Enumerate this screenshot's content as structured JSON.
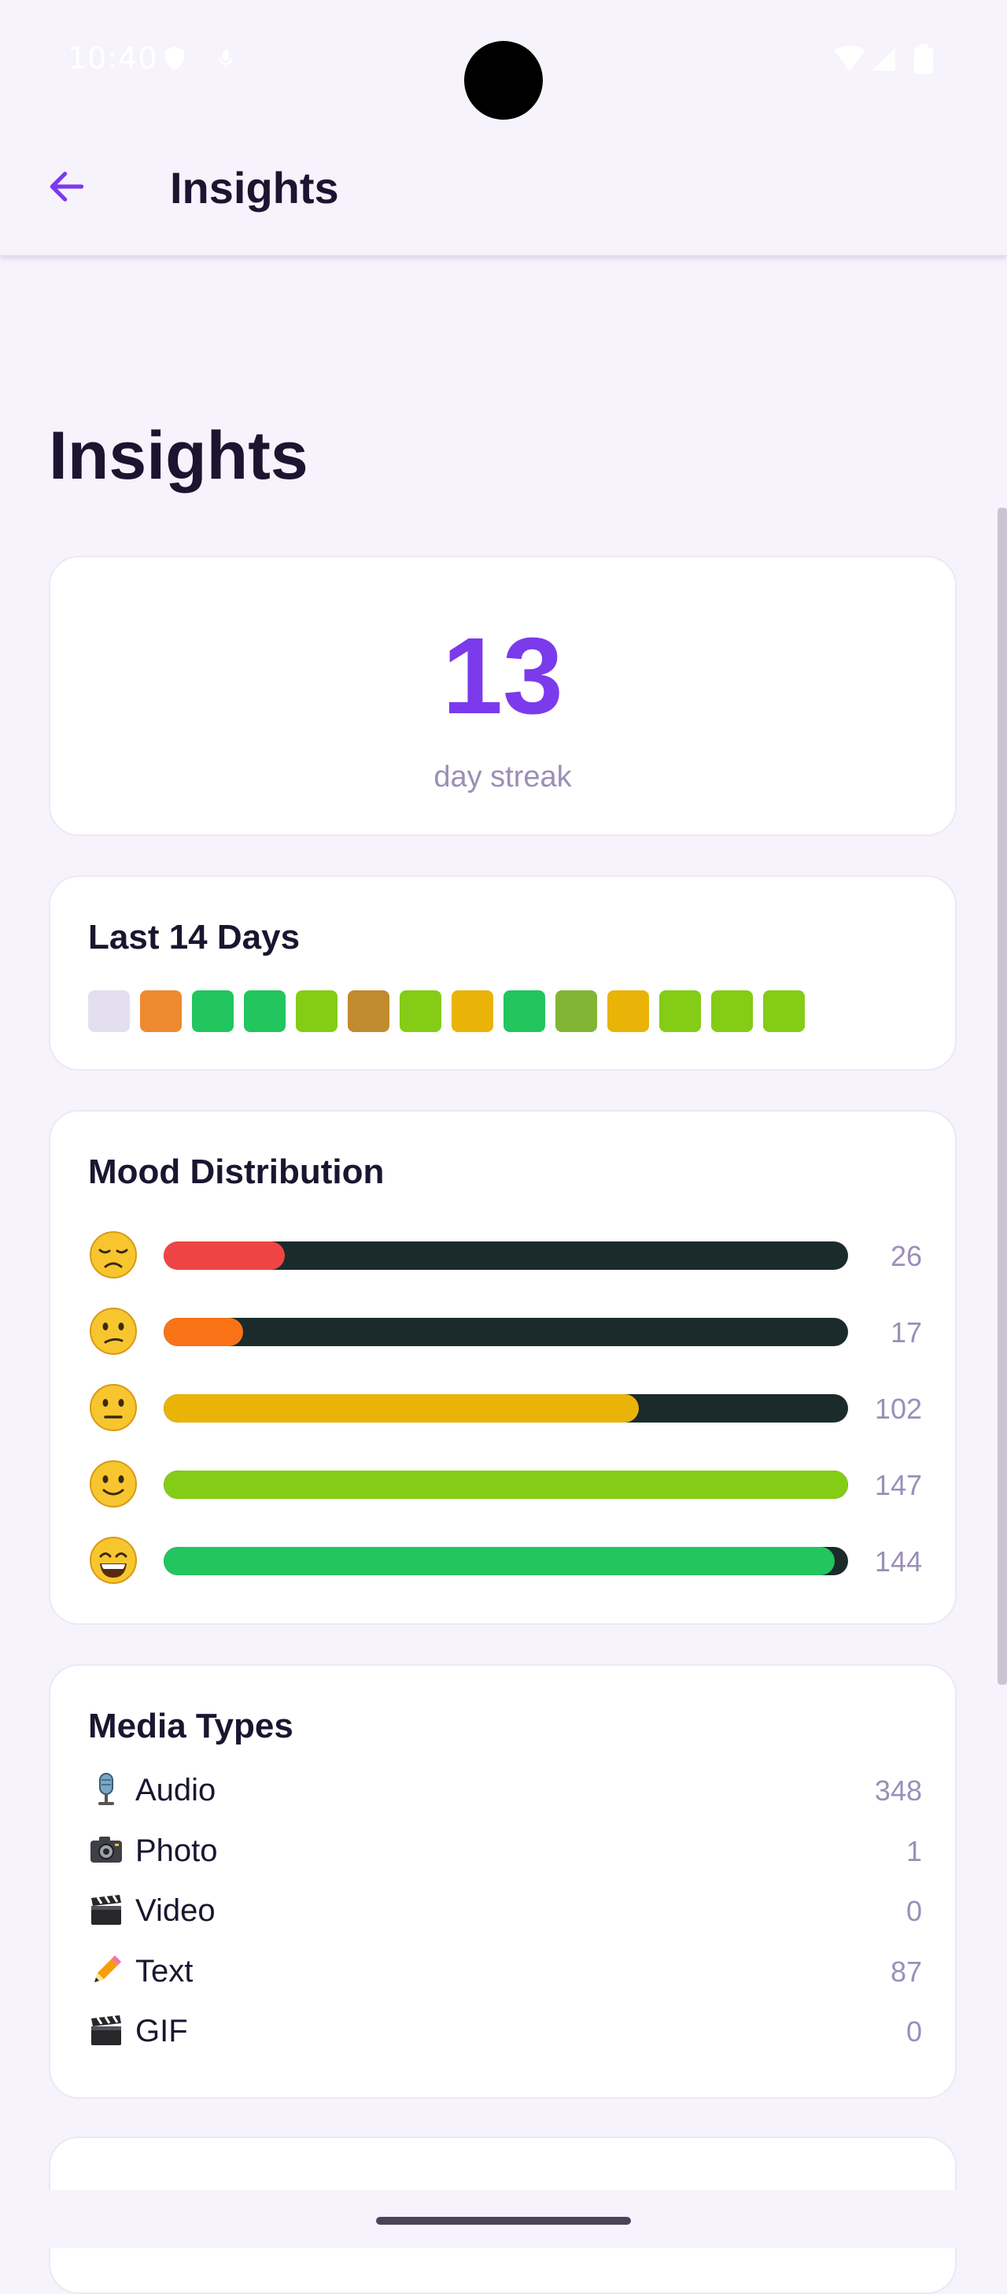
{
  "status_bar": {
    "time": "10:40"
  },
  "app_bar": {
    "title": "Insights"
  },
  "page": {
    "heading": "Insights"
  },
  "streak": {
    "value": "13",
    "label": "day streak",
    "accent": "#7c3aed"
  },
  "last14": {
    "title": "Last 14 Days",
    "colors": [
      "#e4dff0",
      "#ee8a2f",
      "#22c55e",
      "#22c55e",
      "#84cc16",
      "#c08a2e",
      "#84cc16",
      "#eab308",
      "#22c55e",
      "#82b534",
      "#eab308",
      "#84cc16",
      "#84cc16",
      "#84cc16"
    ]
  },
  "mood": {
    "title": "Mood Distribution",
    "rows": [
      {
        "emoji": "disappointed-face",
        "count": "26",
        "fraction": 0.177,
        "color": "#ef4444"
      },
      {
        "emoji": "confused-face",
        "count": "17",
        "fraction": 0.116,
        "color": "#f97316"
      },
      {
        "emoji": "neutral-face",
        "count": "102",
        "fraction": 0.694,
        "color": "#eab308"
      },
      {
        "emoji": "slightly-smiling-face",
        "count": "147",
        "fraction": 1.0,
        "color": "#84cc16"
      },
      {
        "emoji": "grinning-face",
        "count": "144",
        "fraction": 0.98,
        "color": "#22c55e"
      }
    ]
  },
  "media": {
    "title": "Media Types",
    "rows": [
      {
        "icon": "microphone-icon",
        "label": "Audio",
        "count": "348"
      },
      {
        "icon": "camera-icon",
        "label": "Photo",
        "count": "1"
      },
      {
        "icon": "clapper-icon",
        "label": "Video",
        "count": "0"
      },
      {
        "icon": "pencil-icon",
        "label": "Text",
        "count": "87"
      },
      {
        "icon": "clapper-icon",
        "label": "GIF",
        "count": "0"
      }
    ]
  }
}
